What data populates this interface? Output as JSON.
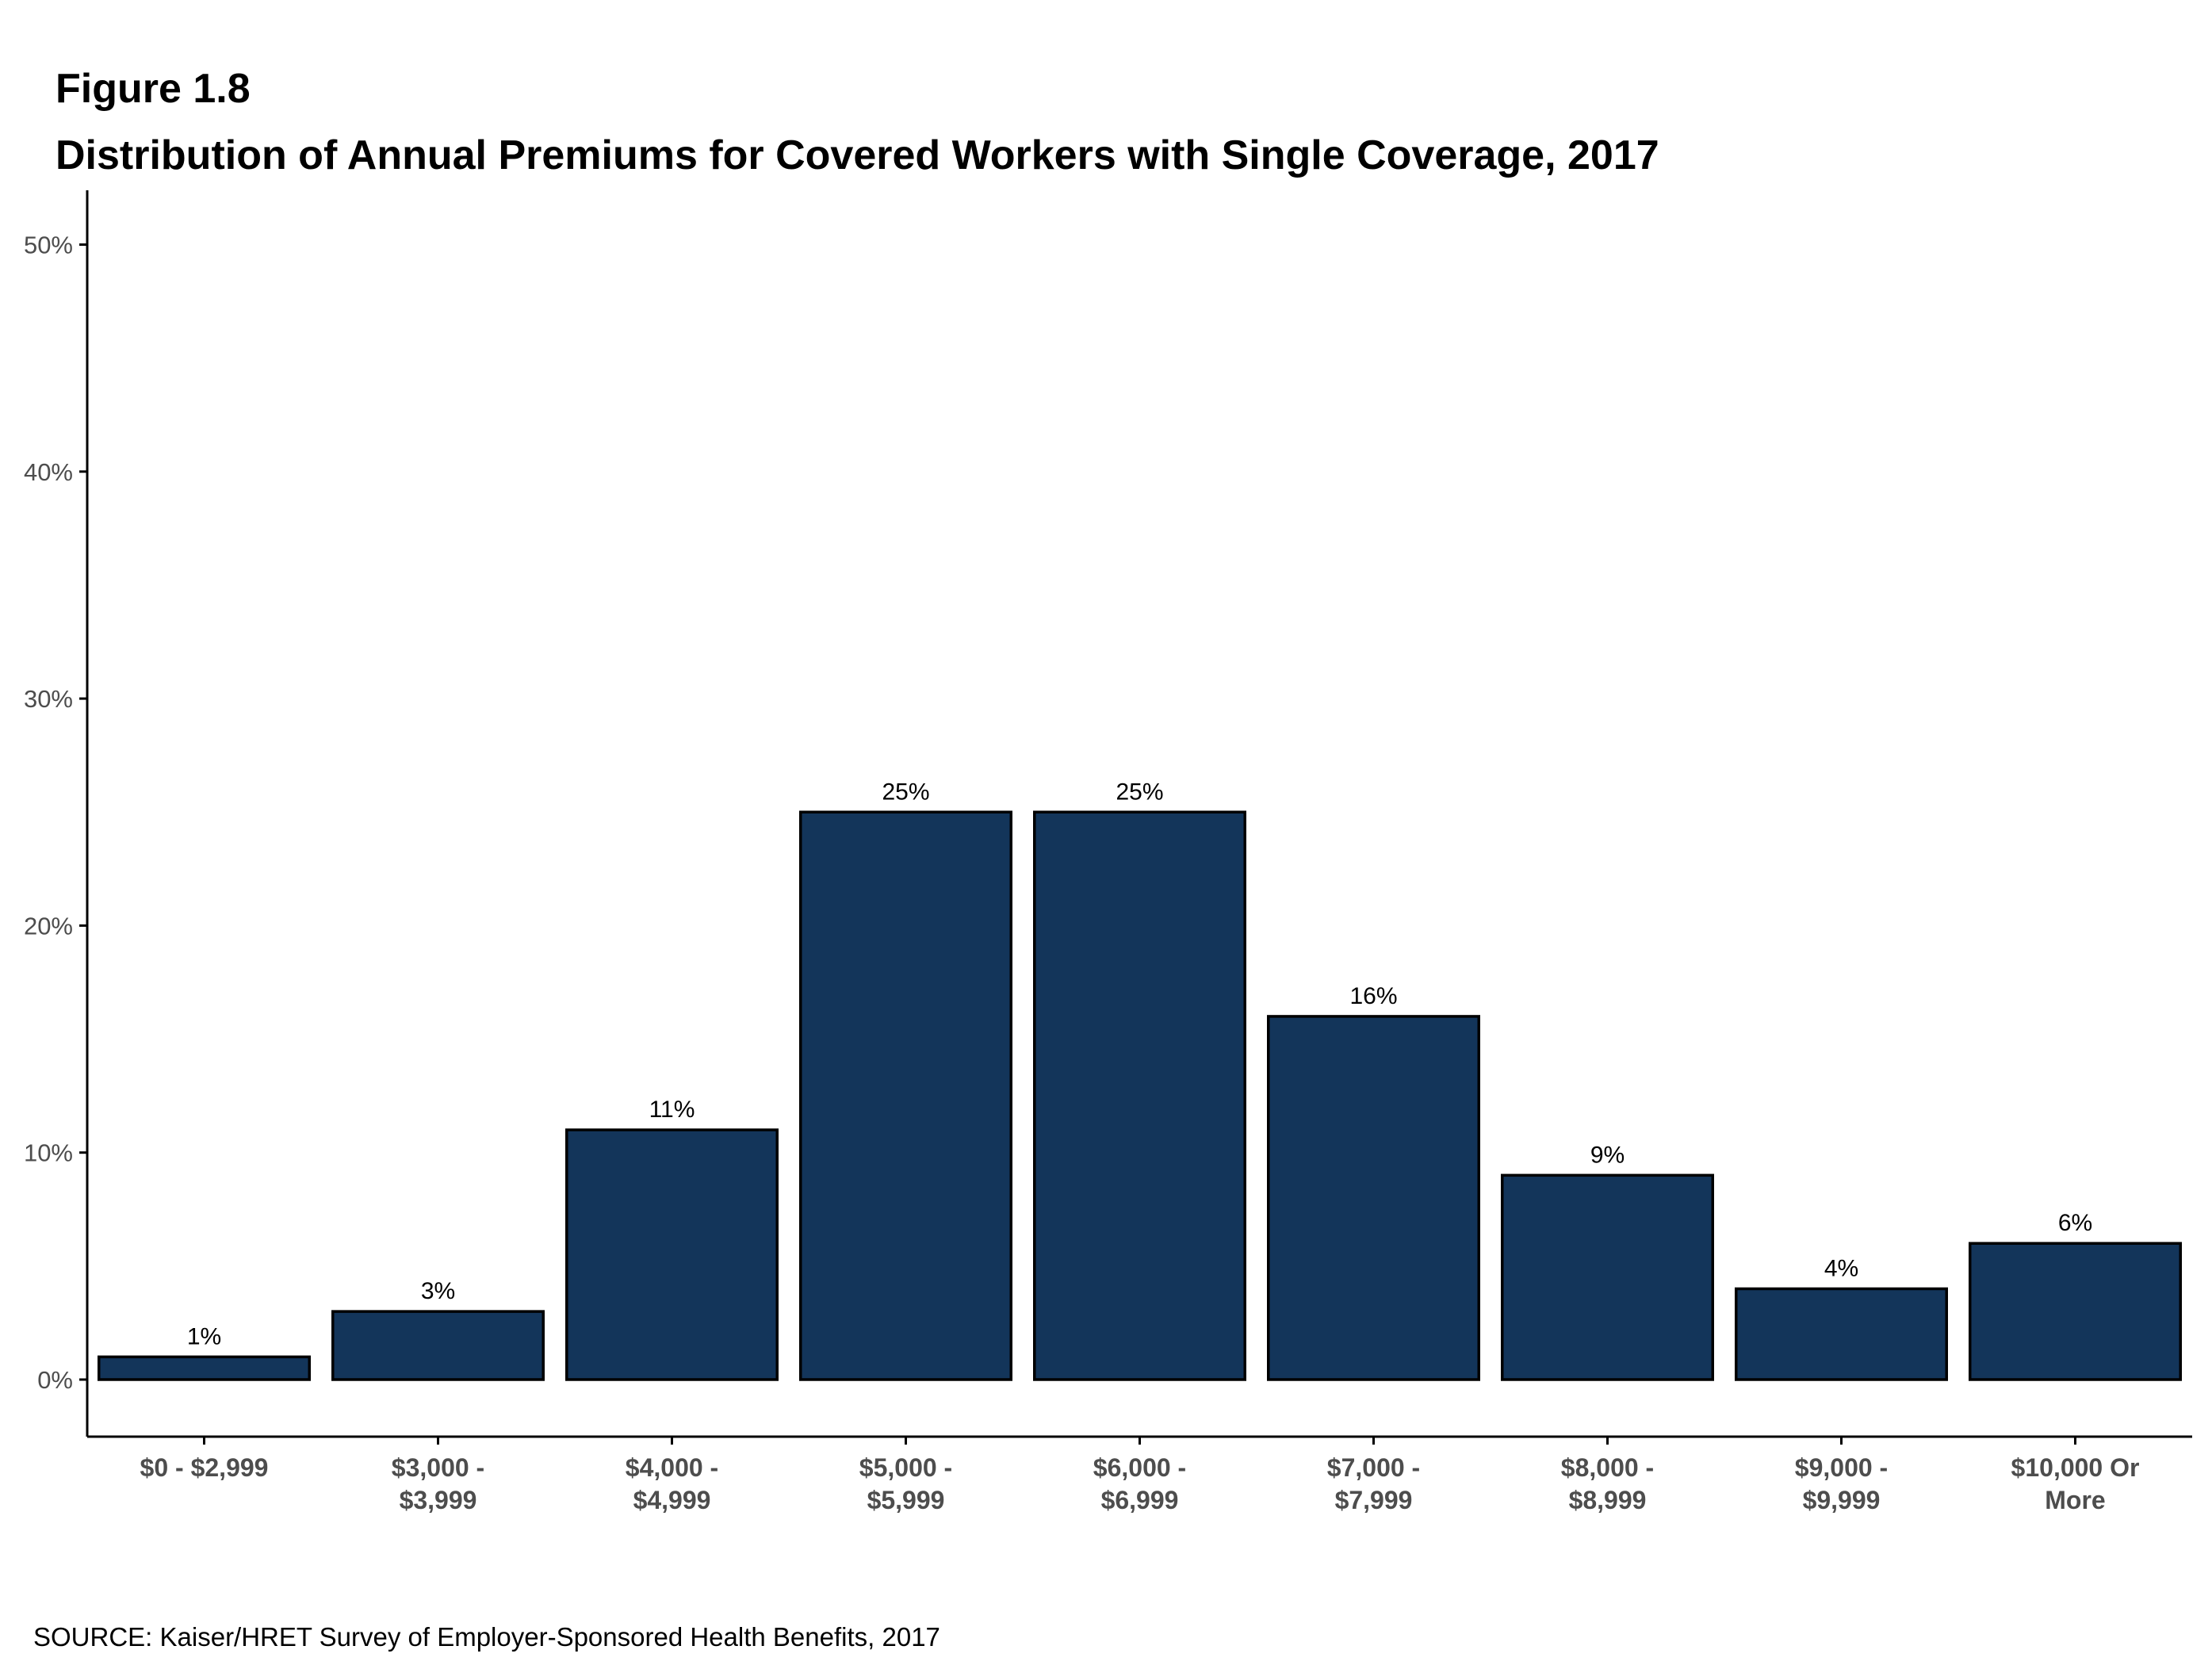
{
  "figure": {
    "label": "Figure 1.8",
    "title": "Distribution of Annual Premiums for Covered Workers with Single Coverage, 2017",
    "source": "SOURCE: Kaiser/HRET Survey of Employer-Sponsored Health Benefits, 2017"
  },
  "colors": {
    "bar": "#13355A",
    "bar_outline": "#000000",
    "axis": "#000000",
    "tick_label": "#4D4D4D"
  },
  "chart_data": {
    "type": "bar",
    "categories": [
      [
        "$0 - $2,999"
      ],
      [
        "$3,000 -",
        "$3,999"
      ],
      [
        "$4,000 -",
        "$4,999"
      ],
      [
        "$5,000 -",
        "$5,999"
      ],
      [
        "$6,000 -",
        "$6,999"
      ],
      [
        "$7,000 -",
        "$7,999"
      ],
      [
        "$8,000 -",
        "$8,999"
      ],
      [
        "$9,000 -",
        "$9,999"
      ],
      [
        "$10,000 Or",
        "More"
      ]
    ],
    "values": [
      1,
      3,
      11,
      25,
      25,
      16,
      9,
      4,
      6
    ],
    "data_labels": [
      "1%",
      "3%",
      "11%",
      "25%",
      "25%",
      "16%",
      "9%",
      "4%",
      "6%"
    ],
    "ylim": [
      0,
      52
    ],
    "yticks": [
      0,
      10,
      20,
      30,
      40,
      50
    ],
    "ytick_labels": [
      "0%",
      "10%",
      "20%",
      "30%",
      "40%",
      "50%"
    ],
    "grid": false,
    "legend": "none"
  }
}
